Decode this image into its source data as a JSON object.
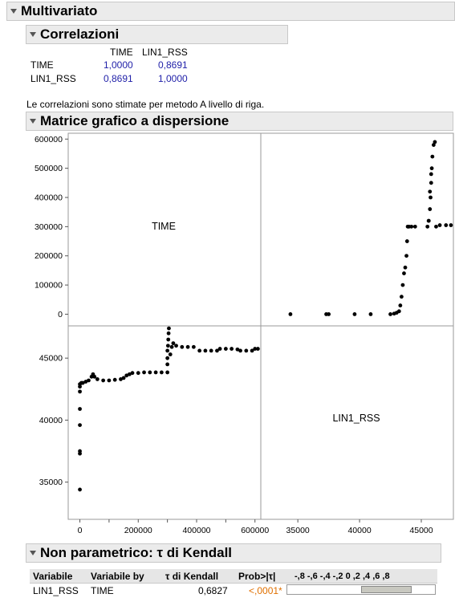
{
  "headers": {
    "multivariate": "Multivariato",
    "correlations": "Correlazioni",
    "matrix": "Matrice grafico a dispersione",
    "kendall": "Non parametrico: τ di Kendall"
  },
  "correlations": {
    "columns": [
      "TIME",
      "LIN1_RSS"
    ],
    "rows": [
      {
        "label": "TIME",
        "values": [
          "1,0000",
          "0,8691"
        ]
      },
      {
        "label": "LIN1_RSS",
        "values": [
          "0,8691",
          "1,0000"
        ]
      }
    ],
    "note": "Le correlazioni sono stimate per metodo A livello di riga."
  },
  "chart_data": {
    "type": "scatter",
    "variables": [
      "TIME",
      "LIN1_RSS"
    ],
    "time_ticks": [
      0,
      100000,
      200000,
      300000,
      400000,
      500000,
      600000
    ],
    "time_tick_labels": [
      "0",
      "100000",
      "200000",
      "300000",
      "400000",
      "500000",
      "600000"
    ],
    "rss_ticks": [
      35000,
      40000,
      45000
    ],
    "rss_tick_labels": [
      "35000",
      "40000",
      "45000"
    ],
    "time_range": [
      -40000,
      620000
    ],
    "rss_range": [
      32000,
      47600
    ],
    "grid": false,
    "points_rss_vs_time": [
      [
        0,
        34400
      ],
      [
        0,
        37300
      ],
      [
        0,
        37500
      ],
      [
        0,
        39600
      ],
      [
        0,
        40900
      ],
      [
        0,
        42300
      ],
      [
        0,
        42700
      ],
      [
        0,
        42900
      ],
      [
        5000,
        43000
      ],
      [
        10000,
        43000
      ],
      [
        20000,
        43100
      ],
      [
        30000,
        43200
      ],
      [
        40000,
        43500
      ],
      [
        45000,
        43700
      ],
      [
        50000,
        43500
      ],
      [
        60000,
        43300
      ],
      [
        80000,
        43200
      ],
      [
        100000,
        43200
      ],
      [
        120000,
        43250
      ],
      [
        140000,
        43300
      ],
      [
        150000,
        43400
      ],
      [
        160000,
        43600
      ],
      [
        170000,
        43700
      ],
      [
        180000,
        43800
      ],
      [
        200000,
        43800
      ],
      [
        220000,
        43850
      ],
      [
        240000,
        43850
      ],
      [
        260000,
        43850
      ],
      [
        280000,
        43850
      ],
      [
        300000,
        43850
      ],
      [
        300000,
        44500
      ],
      [
        300000,
        45000
      ],
      [
        300000,
        45600
      ],
      [
        302000,
        46000
      ],
      [
        303000,
        46500
      ],
      [
        304000,
        47000
      ],
      [
        305000,
        47400
      ],
      [
        310000,
        45300
      ],
      [
        315000,
        45900
      ],
      [
        320000,
        46200
      ],
      [
        330000,
        46000
      ],
      [
        350000,
        45900
      ],
      [
        370000,
        45900
      ],
      [
        390000,
        45900
      ],
      [
        410000,
        45600
      ],
      [
        430000,
        45600
      ],
      [
        450000,
        45600
      ],
      [
        470000,
        45600
      ],
      [
        480000,
        45750
      ],
      [
        500000,
        45750
      ],
      [
        520000,
        45750
      ],
      [
        540000,
        45700
      ],
      [
        550000,
        45600
      ],
      [
        570000,
        45600
      ],
      [
        590000,
        45600
      ],
      [
        600000,
        45750
      ],
      [
        610000,
        45750
      ]
    ],
    "points_time_vs_rss": [
      [
        34400,
        0
      ],
      [
        37300,
        0
      ],
      [
        37500,
        0
      ],
      [
        39600,
        0
      ],
      [
        40900,
        0
      ],
      [
        42500,
        0
      ],
      [
        42800,
        2000
      ],
      [
        43000,
        5000
      ],
      [
        43200,
        10000
      ],
      [
        43300,
        30000
      ],
      [
        43400,
        60000
      ],
      [
        43500,
        100000
      ],
      [
        43600,
        140000
      ],
      [
        43700,
        160000
      ],
      [
        43800,
        200000
      ],
      [
        43850,
        250000
      ],
      [
        43900,
        300000
      ],
      [
        44000,
        300000
      ],
      [
        44200,
        300000
      ],
      [
        44500,
        300000
      ],
      [
        45500,
        300000
      ],
      [
        45600,
        320000
      ],
      [
        45700,
        360000
      ],
      [
        45750,
        400000
      ],
      [
        45800,
        450000
      ],
      [
        45850,
        500000
      ],
      [
        45900,
        540000
      ],
      [
        46000,
        580000
      ],
      [
        46100,
        590000
      ],
      [
        45800,
        480000
      ],
      [
        45700,
        420000
      ],
      [
        45600,
        320000
      ],
      [
        46200,
        300000
      ],
      [
        46500,
        305000
      ],
      [
        47000,
        305000
      ],
      [
        47400,
        305000
      ]
    ]
  },
  "kendall": {
    "columns": [
      "Variabile",
      "Variabile by",
      "τ di Kendall",
      "Prob>|τ|",
      "-,8 -,6 -,4 -,2  0  ,2  ,4  ,6  ,8"
    ],
    "row": {
      "var": "LIN1_RSS",
      "by": "TIME",
      "tau": "0,6827",
      "prob": "<,0001*"
    },
    "tau_value": 0.6827,
    "accent_color": "#e07000"
  }
}
